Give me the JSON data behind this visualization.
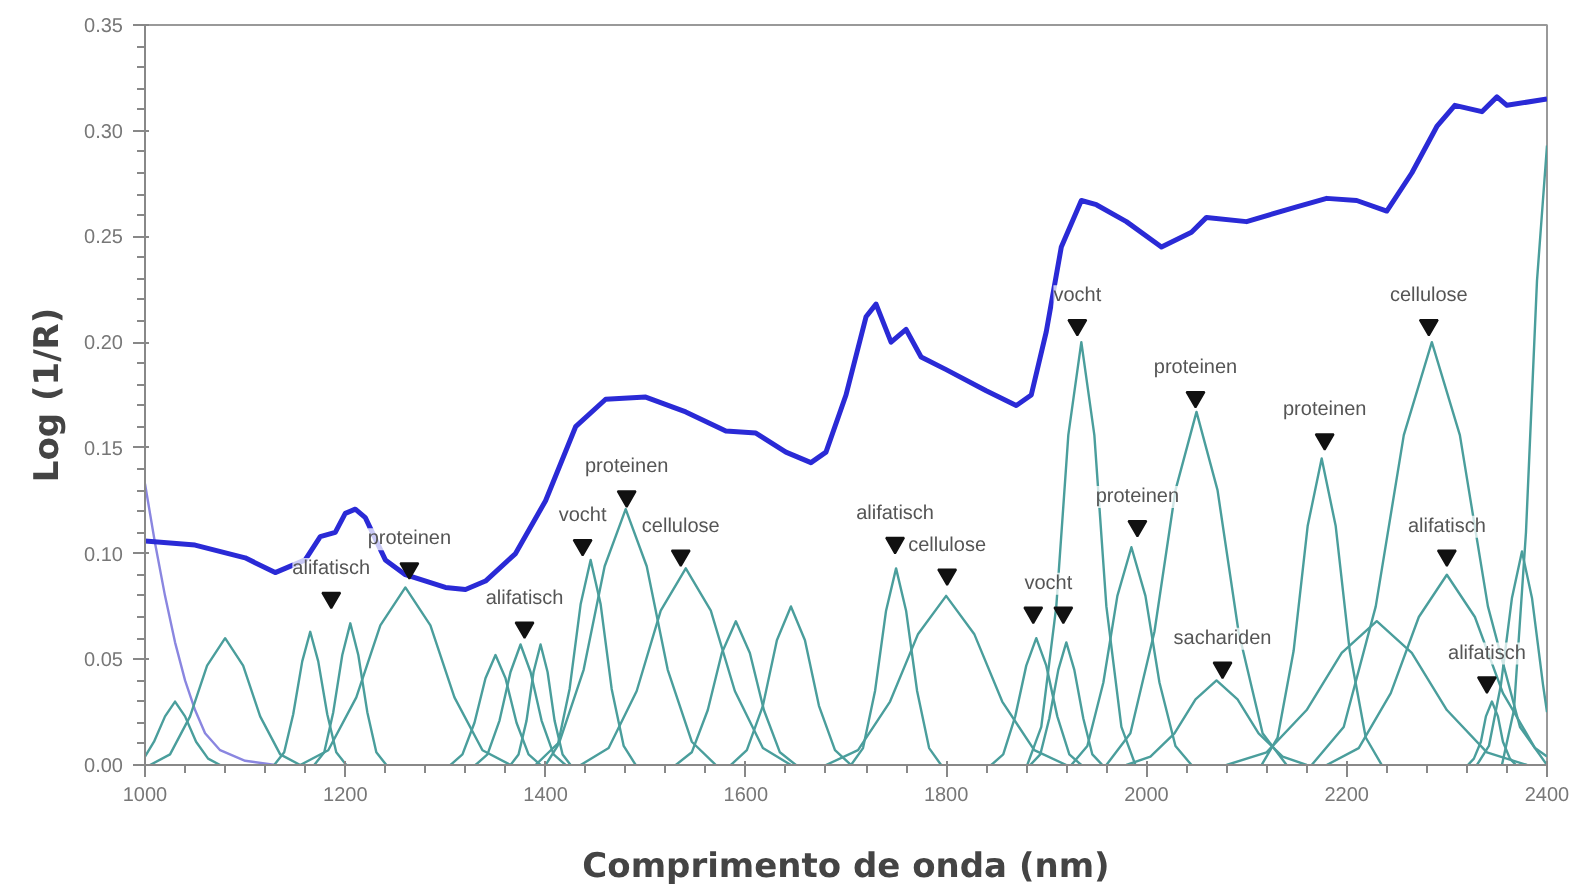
{
  "chart_data": {
    "type": "line",
    "xlabel": "Comprimento de onda (nm)",
    "ylabel": "Log (1/R)",
    "xlim": [
      1000,
      2400
    ],
    "ylim": [
      0,
      0.35
    ],
    "xticks": [
      1000,
      1200,
      1400,
      1600,
      1800,
      2000,
      2200,
      2400
    ],
    "yticks": [
      {
        "value": 0,
        "label": "0.00"
      },
      {
        "value": 0.05,
        "label": "0.05"
      },
      {
        "value": 0.1,
        "label": "0.10"
      },
      {
        "value": 0.15,
        "label": "0.15"
      },
      {
        "value": 0.2,
        "label": "0.20"
      },
      {
        "value": 0.25,
        "label": "0.25"
      },
      {
        "value": 0.3,
        "label": "0.30"
      },
      {
        "value": 0.35,
        "label": "0.35"
      }
    ],
    "grid": false,
    "line_style": "solid",
    "marker": "none",
    "series": [
      {
        "color": "#8a86e0",
        "x": [
          1000,
          1010,
          1020,
          1030,
          1040,
          1050,
          1060,
          1075,
          1100,
          1130
        ],
        "values": [
          0.133,
          0.105,
          0.08,
          0.058,
          0.04,
          0.026,
          0.015,
          0.007,
          0.002,
          0
        ]
      },
      {
        "color": "#4a9e9c",
        "x": [
          1005,
          1025,
          1045,
          1062,
          1080,
          1098,
          1115,
          1135,
          1155
        ],
        "values": [
          0,
          0.005,
          0.023,
          0.047,
          0.06,
          0.047,
          0.023,
          0.005,
          0
        ]
      },
      {
        "color": "#4a9e9c",
        "x": [
          1129,
          1139,
          1148,
          1157,
          1165,
          1173,
          1182,
          1191,
          1201
        ],
        "values": [
          0,
          0.006,
          0.024,
          0.049,
          0.063,
          0.049,
          0.024,
          0.006,
          0
        ]
      },
      {
        "color": "#4a9e9c",
        "x": [
          1169,
          1179,
          1188,
          1197,
          1205,
          1213,
          1222,
          1231,
          1241
        ],
        "values": [
          0,
          0.006,
          0.025,
          0.052,
          0.067,
          0.052,
          0.025,
          0.006,
          0
        ]
      },
      {
        "color": "#4a9e9c",
        "x": [
          1155,
          1183,
          1211,
          1235,
          1260,
          1285,
          1309,
          1337,
          1365
        ],
        "values": [
          0,
          0.007,
          0.032,
          0.066,
          0.084,
          0.066,
          0.032,
          0.007,
          0
        ]
      },
      {
        "color": "#4a9e9c",
        "x": [
          1305,
          1317,
          1329,
          1340,
          1350,
          1360,
          1371,
          1383,
          1395
        ],
        "values": [
          0,
          0.005,
          0.02,
          0.041,
          0.052,
          0.041,
          0.02,
          0.005,
          0
        ]
      },
      {
        "color": "#4a9e9c",
        "x": [
          1330,
          1342,
          1354,
          1365,
          1375,
          1385,
          1396,
          1408,
          1420
        ],
        "values": [
          0,
          0.005,
          0.021,
          0.044,
          0.057,
          0.044,
          0.021,
          0.005,
          0
        ]
      },
      {
        "color": "#4a9e9c",
        "x": [
          1365,
          1373,
          1381,
          1388,
          1395,
          1402,
          1409,
          1417,
          1425
        ],
        "values": [
          0,
          0.005,
          0.021,
          0.044,
          0.057,
          0.044,
          0.021,
          0.005,
          0
        ]
      },
      {
        "color": "#4a9e9c",
        "x": [
          1400,
          1412,
          1424,
          1435,
          1445,
          1455,
          1466,
          1478,
          1490
        ],
        "values": [
          0,
          0.009,
          0.036,
          0.076,
          0.097,
          0.076,
          0.036,
          0.009,
          0
        ]
      },
      {
        "color": "#4a9e9c",
        "x": [
          1390,
          1414,
          1438,
          1459,
          1480,
          1501,
          1522,
          1546,
          1570
        ],
        "values": [
          0,
          0.011,
          0.045,
          0.094,
          0.121,
          0.094,
          0.045,
          0.011,
          0
        ]
      },
      {
        "color": "#4a9e9c",
        "x": [
          1435,
          1463,
          1491,
          1515,
          1540,
          1565,
          1589,
          1617,
          1645
        ],
        "values": [
          0,
          0.008,
          0.035,
          0.073,
          0.093,
          0.073,
          0.035,
          0.008,
          0
        ]
      },
      {
        "color": "#4a9e9c",
        "x": [
          1530,
          1546,
          1562,
          1576,
          1590,
          1604,
          1618,
          1634,
          1650
        ],
        "values": [
          0,
          0.006,
          0.026,
          0.053,
          0.068,
          0.053,
          0.026,
          0.006,
          0
        ]
      },
      {
        "color": "#4a9e9c",
        "x": [
          1585,
          1601,
          1617,
          1631,
          1645,
          1659,
          1673,
          1689,
          1705
        ],
        "values": [
          0,
          0.007,
          0.028,
          0.059,
          0.075,
          0.059,
          0.028,
          0.007,
          0
        ]
      },
      {
        "color": "#4a9e9c",
        "x": [
          1705,
          1717,
          1729,
          1740,
          1750,
          1760,
          1771,
          1783,
          1795
        ],
        "values": [
          0,
          0.008,
          0.035,
          0.073,
          0.093,
          0.073,
          0.035,
          0.008,
          0
        ]
      },
      {
        "color": "#4a9e9c",
        "x": [
          1680,
          1712,
          1744,
          1772,
          1800,
          1828,
          1856,
          1888,
          1920
        ],
        "values": [
          0,
          0.007,
          0.03,
          0.062,
          0.08,
          0.062,
          0.03,
          0.007,
          0
        ]
      },
      {
        "color": "#4a9e9c",
        "x": [
          1845,
          1857,
          1869,
          1880,
          1890,
          1900,
          1911,
          1923,
          1935
        ],
        "values": [
          0,
          0.005,
          0.023,
          0.047,
          0.06,
          0.047,
          0.023,
          0.005,
          0
        ]
      },
      {
        "color": "#4a9e9c",
        "x": [
          1884,
          1894,
          1903,
          1912,
          1920,
          1928,
          1937,
          1946,
          1956
        ],
        "values": [
          0,
          0.005,
          0.022,
          0.045,
          0.058,
          0.045,
          0.022,
          0.005,
          0
        ]
      },
      {
        "color": "#4a9e9c",
        "x": [
          1881,
          1895,
          1910,
          1922,
          1935,
          1948,
          1960,
          1975,
          1989
        ],
        "values": [
          0,
          0.018,
          0.075,
          0.156,
          0.2,
          0.156,
          0.075,
          0.018,
          0
        ]
      },
      {
        "color": "#4a9e9c",
        "x": [
          1925,
          1941,
          1957,
          1971,
          1985,
          1999,
          2013,
          2029,
          2045
        ],
        "values": [
          0,
          0.009,
          0.039,
          0.08,
          0.103,
          0.08,
          0.039,
          0.009,
          0
        ]
      },
      {
        "color": "#4a9e9c",
        "x": [
          1960,
          1984,
          2008,
          2029,
          2050,
          2071,
          2092,
          2116,
          2140
        ],
        "values": [
          0,
          0.015,
          0.063,
          0.13,
          0.167,
          0.13,
          0.063,
          0.015,
          0
        ]
      },
      {
        "color": "#4a9e9c",
        "x": [
          1980,
          2004,
          2028,
          2049,
          2070,
          2091,
          2112,
          2136,
          2160
        ],
        "values": [
          0,
          0.004,
          0.015,
          0.031,
          0.04,
          0.031,
          0.015,
          0.004,
          0
        ]
      },
      {
        "color": "#4a9e9c",
        "x": [
          2115,
          2131,
          2147,
          2161,
          2175,
          2189,
          2203,
          2219,
          2235
        ],
        "values": [
          0,
          0.013,
          0.054,
          0.113,
          0.145,
          0.113,
          0.054,
          0.013,
          0
        ]
      },
      {
        "color": "#4a9e9c",
        "x": [
          2080,
          2120,
          2160,
          2195,
          2230,
          2265,
          2300,
          2340,
          2380
        ],
        "values": [
          0,
          0.006,
          0.026,
          0.053,
          0.068,
          0.053,
          0.026,
          0.006,
          0
        ]
      },
      {
        "color": "#4a9e9c",
        "x": [
          2165,
          2197,
          2229,
          2257,
          2285,
          2313,
          2341,
          2373,
          2400
        ],
        "values": [
          0,
          0.018,
          0.075,
          0.156,
          0.2,
          0.156,
          0.075,
          0.018,
          0
        ]
      },
      {
        "color": "#4a9e9c",
        "x": [
          2180,
          2212,
          2244,
          2272,
          2300,
          2328,
          2356,
          2388,
          2400
        ],
        "values": [
          0,
          0.008,
          0.034,
          0.07,
          0.09,
          0.07,
          0.034,
          0.008,
          0.004
        ]
      },
      {
        "color": "#4a9e9c",
        "x": [
          2321,
          2327,
          2334,
          2339,
          2345,
          2351,
          2356,
          2363,
          2369
        ],
        "values": [
          0,
          0.003,
          0.011,
          0.023,
          0.03,
          0.023,
          0.011,
          0.003,
          0
        ]
      },
      {
        "color": "#4a9e9c",
        "x": [
          2330,
          2342,
          2354,
          2365,
          2375,
          2385,
          2396,
          2400
        ],
        "values": [
          0,
          0.009,
          0.038,
          0.079,
          0.101,
          0.079,
          0.038,
          0.025
        ]
      },
      {
        "color": "#4a9e9c",
        "x": [
          2355,
          2367,
          2379,
          2390,
          2400
        ],
        "values": [
          0,
          0.026,
          0.11,
          0.229,
          0.293
        ]
      },
      {
        "color": "#4a9e9c",
        "x": [
          1000,
          1009,
          1020,
          1030,
          1040,
          1051,
          1063,
          1075
        ],
        "values": [
          0.004,
          0.011,
          0.023,
          0.03,
          0.023,
          0.011,
          0.003,
          0
        ]
      },
      {
        "color": "#2a2ad6",
        "x": [
          1000,
          1050,
          1100,
          1130,
          1160,
          1175,
          1190,
          1200,
          1210,
          1220,
          1240,
          1260,
          1300,
          1320,
          1340,
          1370,
          1400,
          1430,
          1460,
          1500,
          1540,
          1580,
          1610,
          1640,
          1665,
          1680,
          1700,
          1720,
          1730,
          1745,
          1760,
          1775,
          1800,
          1840,
          1870,
          1885,
          1900,
          1915,
          1935,
          1950,
          1980,
          2015,
          2045,
          2060,
          2100,
          2150,
          2180,
          2210,
          2240,
          2265,
          2290,
          2308,
          2335,
          2350,
          2360,
          2400
        ],
        "values": [
          0.106,
          0.104,
          0.098,
          0.091,
          0.097,
          0.108,
          0.11,
          0.119,
          0.121,
          0.117,
          0.097,
          0.09,
          0.084,
          0.083,
          0.087,
          0.1,
          0.125,
          0.16,
          0.173,
          0.174,
          0.167,
          0.158,
          0.157,
          0.148,
          0.143,
          0.148,
          0.175,
          0.212,
          0.218,
          0.2,
          0.206,
          0.193,
          0.187,
          0.177,
          0.17,
          0.175,
          0.205,
          0.245,
          0.267,
          0.265,
          0.257,
          0.245,
          0.252,
          0.259,
          0.257,
          0.264,
          0.268,
          0.267,
          0.262,
          0.28,
          0.302,
          0.312,
          0.309,
          0.316,
          0.312,
          0.315
        ]
      },
      {
        "type": "scatter",
        "marker": "triangle",
        "color": "#111111",
        "x": [
          1186,
          1264,
          1379,
          1437,
          1481,
          1535,
          1749,
          1801,
          1887,
          1917,
          1931,
          1991,
          2049,
          2076,
          2178,
          2282,
          2300,
          2340
        ],
        "values": [
          0.079,
          0.093,
          0.065,
          0.104,
          0.127,
          0.099,
          0.105,
          0.09,
          0.072,
          0.072,
          0.208,
          0.113,
          0.174,
          0.046,
          0.154,
          0.208,
          0.099,
          0.039
        ]
      }
    ],
    "annotations": [
      {
        "text": "alifatisch",
        "x": 1186,
        "y": 0.079
      },
      {
        "text": "proteinen",
        "x": 1264,
        "y": 0.093
      },
      {
        "text": "alifatisch",
        "x": 1379,
        "y": 0.065
      },
      {
        "text": "vocht",
        "x": 1437,
        "y": 0.104
      },
      {
        "text": "proteinen",
        "x": 1481,
        "y": 0.127
      },
      {
        "text": "cellulose",
        "x": 1535,
        "y": 0.099
      },
      {
        "text": "alifatisch",
        "x": 1749,
        "y": 0.105
      },
      {
        "text": "cellulose",
        "x": 1801,
        "y": 0.09
      },
      {
        "text": "vocht",
        "x": 1902,
        "y": 0.072
      },
      {
        "text": "vocht",
        "x": 1931,
        "y": 0.208
      },
      {
        "text": "proteinen",
        "x": 1991,
        "y": 0.113
      },
      {
        "text": "proteinen",
        "x": 2049,
        "y": 0.174
      },
      {
        "text": "sachariden",
        "x": 2076,
        "y": 0.046
      },
      {
        "text": "proteinen",
        "x": 2178,
        "y": 0.154
      },
      {
        "text": "cellulose",
        "x": 2282,
        "y": 0.208
      },
      {
        "text": "alifatisch",
        "x": 2300,
        "y": 0.099
      },
      {
        "text": "alifatisch",
        "x": 2340,
        "y": 0.039
      }
    ]
  }
}
